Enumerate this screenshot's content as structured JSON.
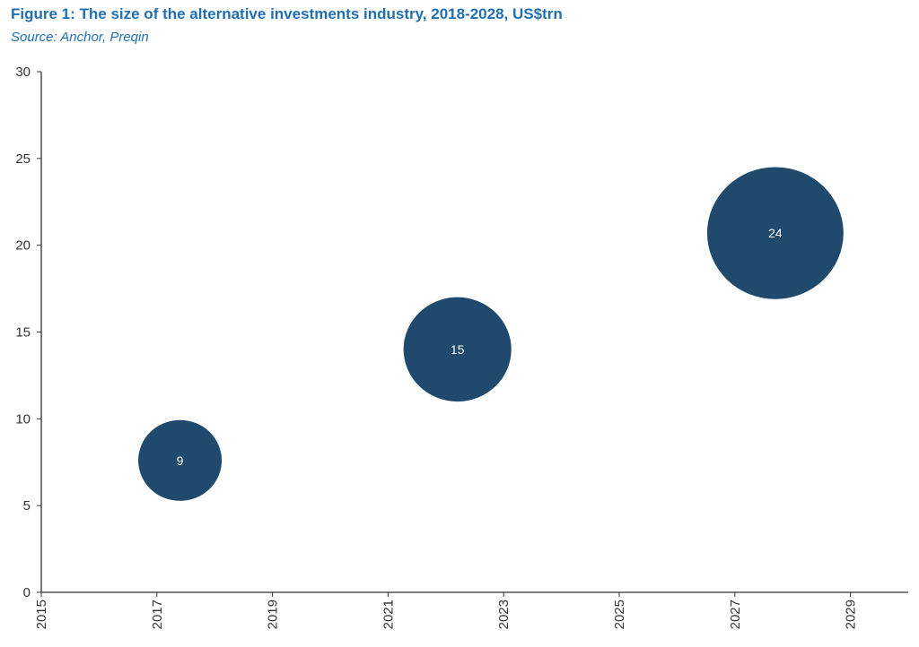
{
  "chart_data": {
    "type": "scatter",
    "title": "Figure 1: The size of the alternative investments industry, 2018-2028, US$trn",
    "subtitle": "Source: Anchor, Preqin",
    "xlim": [
      2015,
      2030
    ],
    "ylim": [
      0,
      30
    ],
    "x_ticks": [
      "2015",
      "2017",
      "2019",
      "2021",
      "2023",
      "2025",
      "2027",
      "2029"
    ],
    "y_ticks": [
      "0",
      "5",
      "10",
      "15",
      "20",
      "25",
      "30"
    ],
    "grid": false,
    "bubbles": [
      {
        "x": 2017.4,
        "y": 7.6,
        "size": 9,
        "label": "9"
      },
      {
        "x": 2022.2,
        "y": 14.0,
        "size": 15,
        "label": "15"
      },
      {
        "x": 2027.7,
        "y": 20.7,
        "size": 24,
        "label": "24"
      }
    ],
    "colors": {
      "bubble": "#1f4a6e",
      "axis": "#333333",
      "title": "#1f6fb2"
    }
  }
}
